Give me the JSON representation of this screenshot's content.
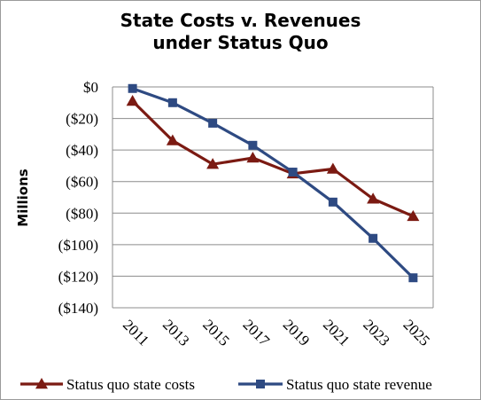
{
  "chart_data": {
    "type": "line",
    "title_line1": "State Costs v. Revenues",
    "title_line2": "under Status Quo",
    "xlabel": "",
    "ylabel": "Millions",
    "categories": [
      "2011",
      "2013",
      "2015",
      "2017",
      "2019",
      "2021",
      "2023",
      "2025"
    ],
    "ylim": [
      -140,
      0
    ],
    "yticks": [
      0,
      -20,
      -40,
      -60,
      -80,
      -100,
      -120,
      -140
    ],
    "ytick_labels": [
      "$0",
      "($20)",
      "($40)",
      "($60)",
      "($80)",
      "($100)",
      "($120)",
      "($140)"
    ],
    "grid": true,
    "legend_position": "bottom",
    "series": [
      {
        "name": "Status quo state costs",
        "values": [
          -9,
          -34,
          -49,
          -45,
          -55,
          -52,
          -71,
          -82
        ],
        "color": "#7b1a12",
        "marker": "triangle"
      },
      {
        "name": "Status quo state revenue",
        "values": [
          -1,
          -10,
          -23,
          -37,
          -54,
          -73,
          -96,
          -121
        ],
        "color": "#2e4a82",
        "marker": "square"
      }
    ]
  }
}
